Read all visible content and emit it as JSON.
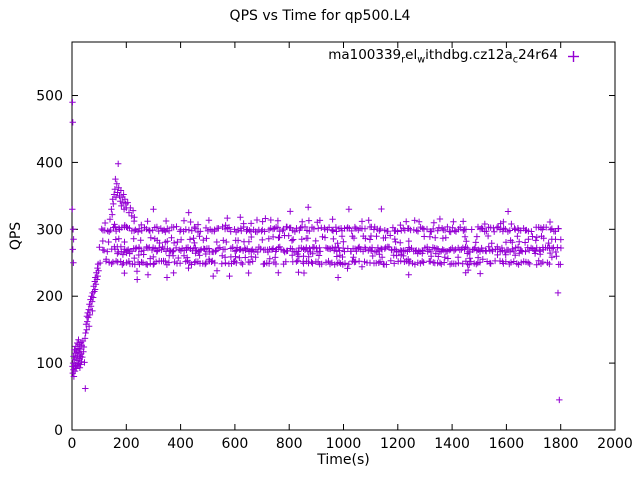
{
  "title": "QPS vs Time for qp500.L4",
  "colors": {
    "accent": "#9400D3",
    "axis": "#000000",
    "background": "#ffffff"
  },
  "legend": {
    "series_label_plain": "ma100339_rel_withdbg.cz12a_c24r64",
    "segments": [
      {
        "text": "ma100339",
        "sub": false
      },
      {
        "text": "r",
        "sub": true
      },
      {
        "text": "el",
        "sub": false
      },
      {
        "text": "w",
        "sub": true
      },
      {
        "text": "ithdbg.cz12a",
        "sub": false
      },
      {
        "text": "c",
        "sub": true
      },
      {
        "text": "24r64",
        "sub": false
      }
    ]
  },
  "axes": {
    "x": {
      "label": "Time(s)",
      "ticks": [
        0,
        200,
        400,
        600,
        800,
        1000,
        1200,
        1400,
        1600,
        1800,
        2000
      ]
    },
    "y": {
      "label": "QPS",
      "ticks": [
        0,
        100,
        200,
        300,
        400,
        500
      ]
    }
  },
  "chart_data": {
    "type": "scatter",
    "title": "QPS vs Time for qp500.L4",
    "xlabel": "Time(s)",
    "ylabel": "QPS",
    "xlim": [
      0,
      2000
    ],
    "ylim": [
      0,
      580
    ],
    "grid": false,
    "legend_position": "top-right-inside",
    "marker": "plus",
    "series_name": "ma100339_rel_withdbg.cz12a_c24r64",
    "points": [
      [
        1,
        330
      ],
      [
        2,
        490
      ],
      [
        3,
        460
      ],
      [
        3,
        270
      ],
      [
        4,
        300
      ],
      [
        5,
        250
      ],
      [
        6,
        285
      ],
      [
        2,
        95
      ],
      [
        3,
        85
      ],
      [
        4,
        100
      ],
      [
        5,
        90
      ],
      [
        6,
        110
      ],
      [
        7,
        80
      ],
      [
        8,
        95
      ],
      [
        9,
        120
      ],
      [
        10,
        105
      ],
      [
        11,
        88
      ],
      [
        12,
        115
      ],
      [
        13,
        97
      ],
      [
        14,
        125
      ],
      [
        15,
        108
      ],
      [
        16,
        92
      ],
      [
        17,
        118
      ],
      [
        18,
        100
      ],
      [
        19,
        130
      ],
      [
        20,
        112
      ],
      [
        21,
        96
      ],
      [
        22,
        122
      ],
      [
        23,
        104
      ],
      [
        24,
        135
      ],
      [
        25,
        99
      ],
      [
        26,
        116
      ],
      [
        27,
        128
      ],
      [
        28,
        107
      ],
      [
        29,
        93
      ],
      [
        30,
        121
      ],
      [
        31,
        110
      ],
      [
        32,
        98
      ],
      [
        33,
        131
      ],
      [
        34,
        114
      ],
      [
        35,
        102
      ],
      [
        36,
        126
      ],
      [
        38,
        109
      ],
      [
        40,
        133
      ],
      [
        42,
        117
      ],
      [
        44,
        124
      ],
      [
        46,
        101
      ],
      [
        48,
        137
      ],
      [
        49,
        62
      ],
      [
        50,
        145
      ],
      [
        52,
        158
      ],
      [
        54,
        150
      ],
      [
        55,
        170
      ],
      [
        56,
        162
      ],
      [
        58,
        175
      ],
      [
        60,
        168
      ],
      [
        62,
        180
      ],
      [
        63,
        155
      ],
      [
        64,
        188
      ],
      [
        66,
        172
      ],
      [
        68,
        195
      ],
      [
        70,
        185
      ],
      [
        72,
        200
      ],
      [
        74,
        192
      ],
      [
        75,
        178
      ],
      [
        76,
        205
      ],
      [
        78,
        198
      ],
      [
        80,
        215
      ],
      [
        82,
        207
      ],
      [
        84,
        222
      ],
      [
        85,
        210
      ],
      [
        86,
        228
      ],
      [
        88,
        218
      ],
      [
        90,
        235
      ],
      [
        92,
        225
      ],
      [
        94,
        242
      ],
      [
        95,
        230
      ],
      [
        96,
        248
      ],
      [
        98,
        238
      ],
      [
        140,
        315
      ],
      [
        145,
        330
      ],
      [
        148,
        322
      ],
      [
        150,
        345
      ],
      [
        152,
        338
      ],
      [
        155,
        352
      ],
      [
        158,
        360
      ],
      [
        160,
        375
      ],
      [
        162,
        348
      ],
      [
        165,
        368
      ],
      [
        168,
        355
      ],
      [
        170,
        398
      ],
      [
        172,
        362
      ],
      [
        175,
        350
      ],
      [
        178,
        342
      ],
      [
        180,
        358
      ],
      [
        182,
        335
      ],
      [
        185,
        348
      ],
      [
        188,
        340
      ],
      [
        190,
        352
      ],
      [
        192,
        330
      ],
      [
        195,
        345
      ],
      [
        198,
        338
      ],
      [
        200,
        332
      ],
      [
        205,
        340
      ],
      [
        210,
        325
      ],
      [
        215,
        332
      ],
      [
        220,
        320
      ],
      [
        225,
        328
      ],
      [
        230,
        318
      ],
      [
        240,
        225
      ],
      [
        280,
        232
      ],
      [
        300,
        330
      ],
      [
        350,
        228
      ],
      [
        430,
        325
      ],
      [
        520,
        230
      ],
      [
        620,
        318
      ],
      [
        760,
        235
      ],
      [
        870,
        333
      ],
      [
        960,
        315
      ],
      [
        980,
        228
      ],
      [
        1020,
        330
      ],
      [
        1240,
        232
      ],
      [
        1450,
        235
      ],
      [
        1790,
        205
      ],
      [
        1795,
        45
      ]
    ],
    "dense_bands": [
      {
        "level": 270,
        "from": 100,
        "to": 1800,
        "step": 6,
        "jitter": 4,
        "density": 0.95
      },
      {
        "level": 300,
        "from": 108,
        "to": 1800,
        "step": 7,
        "jitter": 4,
        "density": 0.9
      },
      {
        "level": 250,
        "from": 104,
        "to": 1800,
        "step": 8,
        "jitter": 3,
        "density": 0.85
      },
      {
        "level": 285,
        "from": 118,
        "to": 1795,
        "step": 13,
        "jitter": 6,
        "density": 0.7
      },
      {
        "level": 260,
        "from": 122,
        "to": 1795,
        "step": 16,
        "jitter": 5,
        "density": 0.65
      },
      {
        "level": 310,
        "from": 130,
        "to": 1780,
        "step": 24,
        "jitter": 4,
        "density": 0.55
      },
      {
        "level": 237,
        "from": 150,
        "to": 1760,
        "step": 55,
        "jitter": 7,
        "density": 0.5
      },
      {
        "level": 323,
        "from": 210,
        "to": 1700,
        "step": 95,
        "jitter": 8,
        "density": 0.45
      }
    ]
  }
}
